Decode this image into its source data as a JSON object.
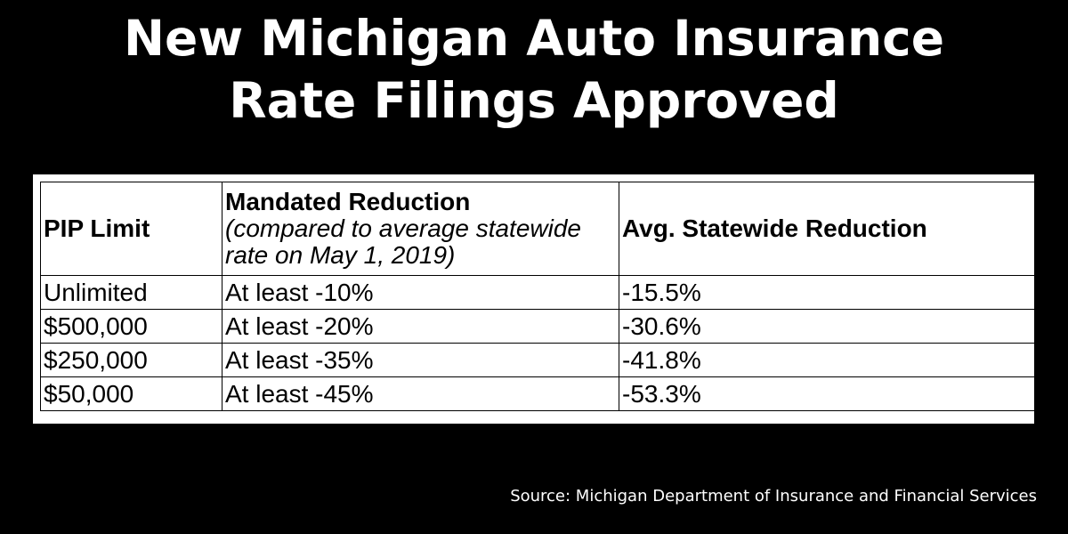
{
  "title": {
    "line1": "New Michigan Auto Insurance",
    "line2": "Rate Filings Approved"
  },
  "table": {
    "headers": {
      "pip_limit": "PIP Limit",
      "mandated": "Mandated Reduction",
      "mandated_note": "(compared to average statewide rate on May 1, 2019)",
      "avg": "Avg. Statewide Reduction"
    },
    "rows": [
      {
        "limit": "Unlimited",
        "mandated": "At least -10%",
        "avg": "-15.5%"
      },
      {
        "limit": "$500,000",
        "mandated": "At least -20%",
        "avg": "-30.6%"
      },
      {
        "limit": "$250,000",
        "mandated": "At least -35%",
        "avg": "-41.8%"
      },
      {
        "limit": "$50,000",
        "mandated": "At least -45%",
        "avg": "-53.3%"
      }
    ]
  },
  "source": "Source: Michigan Department of Insurance and Financial Services",
  "colors": {
    "background": "#000000",
    "title_text": "#ffffff",
    "table_bg": "#ffffff",
    "table_text": "#000000"
  }
}
